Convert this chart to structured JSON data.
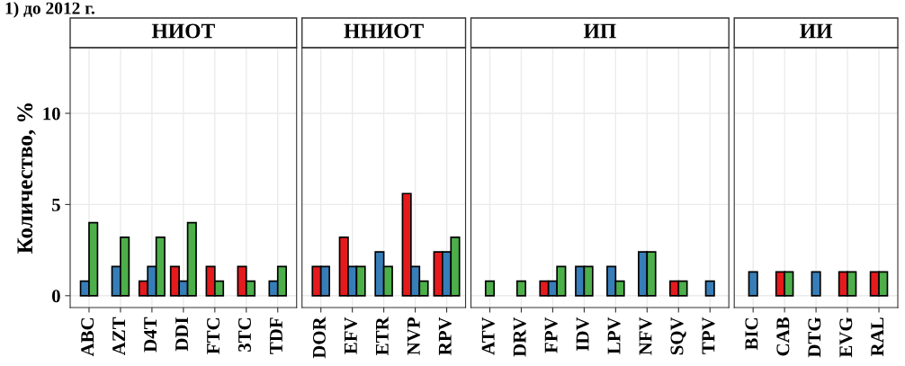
{
  "chart_data": [
    {
      "type": "bar",
      "title": "НИОТ",
      "ylabel": "Количество, %",
      "annotations": [
        "1) до 2012 г."
      ],
      "categories": [
        "ABC",
        "AZT",
        "D4T",
        "DDI",
        "FTC",
        "3TC",
        "TDF"
      ],
      "series": [
        {
          "color": "#e41a1c",
          "values": [
            null,
            null,
            0.8,
            1.6,
            1.6,
            1.6,
            null
          ]
        },
        {
          "color": "#377eb8",
          "values": [
            0.8,
            1.6,
            1.6,
            0.8,
            null,
            null,
            0.8
          ]
        },
        {
          "color": "#4daf4a",
          "values": [
            4.0,
            3.2,
            3.2,
            4.0,
            0.8,
            0.8,
            1.6
          ]
        }
      ],
      "ylim": [
        -0.65,
        13.6
      ],
      "yticks": [
        0,
        5,
        10
      ],
      "grid": true,
      "legend": false
    },
    {
      "type": "bar",
      "title": "ННИОТ",
      "categories": [
        "DOR",
        "EFV",
        "ETR",
        "NVP",
        "RPV"
      ],
      "series": [
        {
          "color": "#e41a1c",
          "values": [
            1.6,
            3.2,
            null,
            5.6,
            2.4
          ]
        },
        {
          "color": "#377eb8",
          "values": [
            1.6,
            1.6,
            2.4,
            1.6,
            2.4
          ]
        },
        {
          "color": "#4daf4a",
          "values": [
            null,
            1.6,
            1.6,
            0.8,
            3.2
          ]
        }
      ],
      "ylim": [
        -0.65,
        13.6
      ],
      "yticks": [
        0,
        5,
        10
      ],
      "grid": true,
      "legend": false,
      "tick_labels": "x"
    },
    {
      "type": "bar",
      "title": "ИП",
      "categories": [
        "ATV",
        "DRV",
        "FPV",
        "IDV",
        "LPV",
        "NFV",
        "SQV",
        "TPV"
      ],
      "series": [
        {
          "color": "#e41a1c",
          "values": [
            null,
            null,
            0.8,
            null,
            null,
            null,
            0.8,
            null
          ]
        },
        {
          "color": "#377eb8",
          "values": [
            null,
            null,
            0.8,
            1.6,
            1.6,
            2.4,
            null,
            0.8
          ]
        },
        {
          "color": "#4daf4a",
          "values": [
            0.8,
            0.8,
            1.6,
            1.6,
            0.8,
            2.4,
            0.8,
            null
          ]
        }
      ],
      "ylim": [
        -0.65,
        13.6
      ],
      "yticks": [
        0,
        5,
        10
      ],
      "grid": true,
      "legend": false,
      "tick_labels": "x"
    },
    {
      "type": "bar",
      "title": "ИИ",
      "categories": [
        "BIC",
        "CAB",
        "DTG",
        "EVG",
        "RAL"
      ],
      "series": [
        {
          "color": "#e41a1c",
          "values": [
            null,
            1.3,
            null,
            1.3,
            1.3
          ]
        },
        {
          "color": "#377eb8",
          "values": [
            1.3,
            null,
            1.3,
            null,
            null
          ]
        },
        {
          "color": "#4daf4a",
          "values": [
            null,
            1.3,
            null,
            1.3,
            1.3
          ]
        }
      ],
      "ylim": [
        -0.65,
        13.6
      ],
      "yticks": [
        0,
        5,
        10
      ],
      "grid": true,
      "legend": false,
      "tick_labels": "x"
    }
  ]
}
